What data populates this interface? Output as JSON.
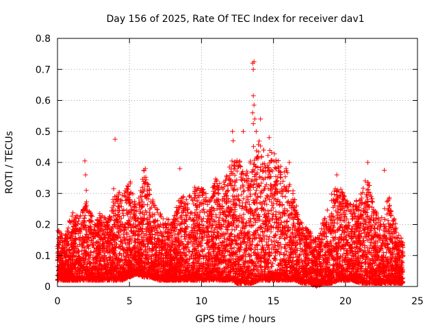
{
  "chart_data": {
    "type": "scatter",
    "title": "Day 156 of 2025, Rate Of TEC Index for receiver dav1",
    "xlabel": "GPS time / hours",
    "ylabel": "ROTI / TECUs",
    "xlim": [
      0,
      25
    ],
    "ylim": [
      0,
      0.8
    ],
    "xticks": [
      0,
      5,
      10,
      15,
      20,
      25
    ],
    "xtick_labels": [
      "0",
      "5",
      "10",
      "15",
      "20",
      "25"
    ],
    "yticks": [
      0,
      0.1,
      0.2,
      0.3,
      0.4,
      0.5,
      0.6,
      0.7,
      0.8
    ],
    "ytick_labels": [
      "0",
      "0.1",
      "0.2",
      "0.3",
      "0.4",
      "0.5",
      "0.6",
      "0.7",
      "0.8"
    ],
    "grid": true,
    "marker": "+",
    "series_color": "#ff0000",
    "envelope": {
      "x": [
        0.0,
        0.5,
        1.0,
        1.5,
        2.0,
        2.5,
        3.0,
        3.5,
        4.0,
        4.5,
        5.0,
        5.5,
        6.0,
        6.5,
        7.0,
        7.5,
        8.0,
        8.5,
        9.0,
        9.5,
        10.0,
        10.5,
        11.0,
        11.5,
        12.0,
        12.5,
        13.0,
        13.5,
        14.0,
        14.5,
        15.0,
        15.5,
        16.0,
        16.5,
        17.0,
        17.5,
        18.0,
        18.5,
        19.0,
        19.5,
        20.0,
        20.5,
        21.0,
        21.5,
        22.0,
        22.5,
        23.0,
        23.5,
        24.0
      ],
      "y_max": [
        0.19,
        0.16,
        0.24,
        0.23,
        0.28,
        0.22,
        0.24,
        0.21,
        0.31,
        0.3,
        0.35,
        0.25,
        0.38,
        0.3,
        0.24,
        0.22,
        0.21,
        0.3,
        0.28,
        0.32,
        0.33,
        0.3,
        0.35,
        0.33,
        0.4,
        0.43,
        0.35,
        0.45,
        0.48,
        0.42,
        0.47,
        0.4,
        0.38,
        0.28,
        0.21,
        0.18,
        0.15,
        0.22,
        0.3,
        0.33,
        0.29,
        0.26,
        0.3,
        0.37,
        0.25,
        0.22,
        0.3,
        0.2,
        0.14
      ],
      "y_min": [
        0.02,
        0.02,
        0.02,
        0.02,
        0.02,
        0.02,
        0.02,
        0.02,
        0.02,
        0.02,
        0.03,
        0.04,
        0.03,
        0.03,
        0.02,
        0.02,
        0.02,
        0.02,
        0.02,
        0.02,
        0.02,
        0.02,
        0.02,
        0.02,
        0.02,
        0.01,
        0.01,
        0.01,
        0.02,
        0.02,
        0.02,
        0.02,
        0.02,
        0.02,
        0.01,
        0.01,
        0.0,
        0.01,
        0.01,
        0.02,
        0.02,
        0.02,
        0.01,
        0.01,
        0.01,
        0.01,
        0.01,
        0.01,
        0.01
      ]
    },
    "outliers": [
      {
        "x": 1.9,
        "y": 0.405
      },
      {
        "x": 1.95,
        "y": 0.36
      },
      {
        "x": 2.0,
        "y": 0.31
      },
      {
        "x": 4.0,
        "y": 0.475
      },
      {
        "x": 3.9,
        "y": 0.315
      },
      {
        "x": 6.1,
        "y": 0.38
      },
      {
        "x": 8.5,
        "y": 0.38
      },
      {
        "x": 12.15,
        "y": 0.5
      },
      {
        "x": 12.2,
        "y": 0.47
      },
      {
        "x": 12.9,
        "y": 0.5
      },
      {
        "x": 13.55,
        "y": 0.72
      },
      {
        "x": 13.65,
        "y": 0.725
      },
      {
        "x": 13.6,
        "y": 0.7
      },
      {
        "x": 13.6,
        "y": 0.615
      },
      {
        "x": 13.65,
        "y": 0.585
      },
      {
        "x": 13.55,
        "y": 0.56
      },
      {
        "x": 13.7,
        "y": 0.54
      },
      {
        "x": 13.6,
        "y": 0.525
      },
      {
        "x": 13.8,
        "y": 0.5
      },
      {
        "x": 14.1,
        "y": 0.54
      },
      {
        "x": 14.7,
        "y": 0.48
      },
      {
        "x": 16.1,
        "y": 0.4
      },
      {
        "x": 19.4,
        "y": 0.36
      },
      {
        "x": 21.55,
        "y": 0.4
      },
      {
        "x": 22.7,
        "y": 0.375
      }
    ]
  }
}
